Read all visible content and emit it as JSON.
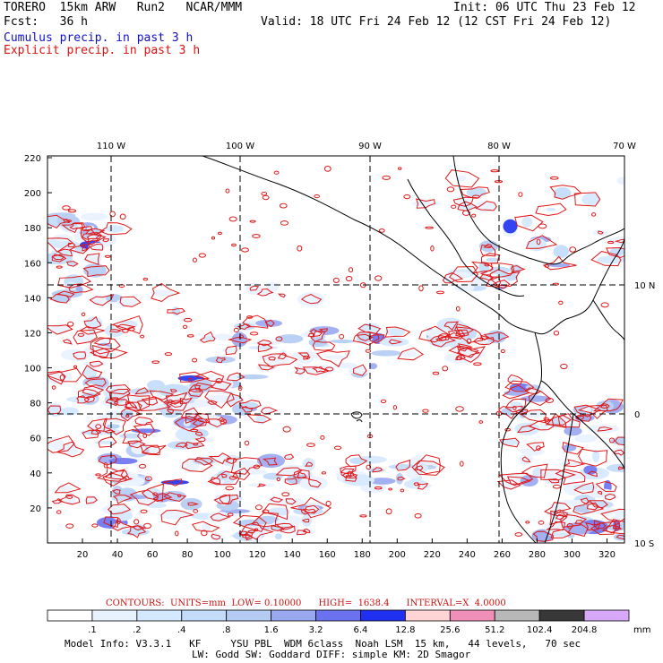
{
  "header": {
    "model": "TORERO  15km ARW   Run2   NCAR/MMM",
    "init": "Init: 06 UTC Thu 23 Feb 12",
    "fcst": "Fcst:   36 h",
    "valid": "Valid: 18 UTC Fri 24 Feb 12 (12 CST Fri 24 Feb 12)",
    "cumulus": "Cumulus precip. in past 3 h",
    "explicit": "Explicit precip. in past 3 h"
  },
  "axes": {
    "top_labels": [
      "110 W",
      "100 W",
      "90 W",
      "80 W",
      "70 W"
    ],
    "right_labels": [
      "10 N",
      "0",
      "10 S"
    ],
    "left_ticks": [
      "220",
      "200",
      "180",
      "160",
      "140",
      "120",
      "100",
      "80",
      "60",
      "40",
      "20"
    ],
    "bottom_ticks": [
      "20",
      "40",
      "60",
      "80",
      "100",
      "120",
      "140",
      "160",
      "180",
      "200",
      "220",
      "240",
      "260",
      "280",
      "300",
      "320"
    ]
  },
  "contours": {
    "label": "CONTOURS:  UNITS=mm  LOW= 0.10000      HIGH=  1638.4      INTERVAL=X  4.0000"
  },
  "colorbar": {
    "labels": [
      ".1",
      ".2",
      ".4",
      ".8",
      "1.6",
      "3.2",
      "6.4",
      "12.8",
      "25.6",
      "51.2",
      "102.4",
      "204.8"
    ],
    "unit": "mm",
    "colors": [
      "#ffffff",
      "#e8f2ff",
      "#d4e8ff",
      "#c2dcfa",
      "#b4ccf4",
      "#9aa8f0",
      "#6a72f0",
      "#2030f0",
      "#ffd4d4",
      "#f090b8",
      "#b8b8b8",
      "#383838",
      "#d8a8f8"
    ]
  },
  "footer": {
    "line1": "Model Info: V3.3.1   KF     YSU PBL  WDM 6class  Noah LSM  15 km,   44 levels,   70 sec",
    "line2": "LW: Godd SW: Goddard DIFF: simple KM: 2D Smagor"
  }
}
